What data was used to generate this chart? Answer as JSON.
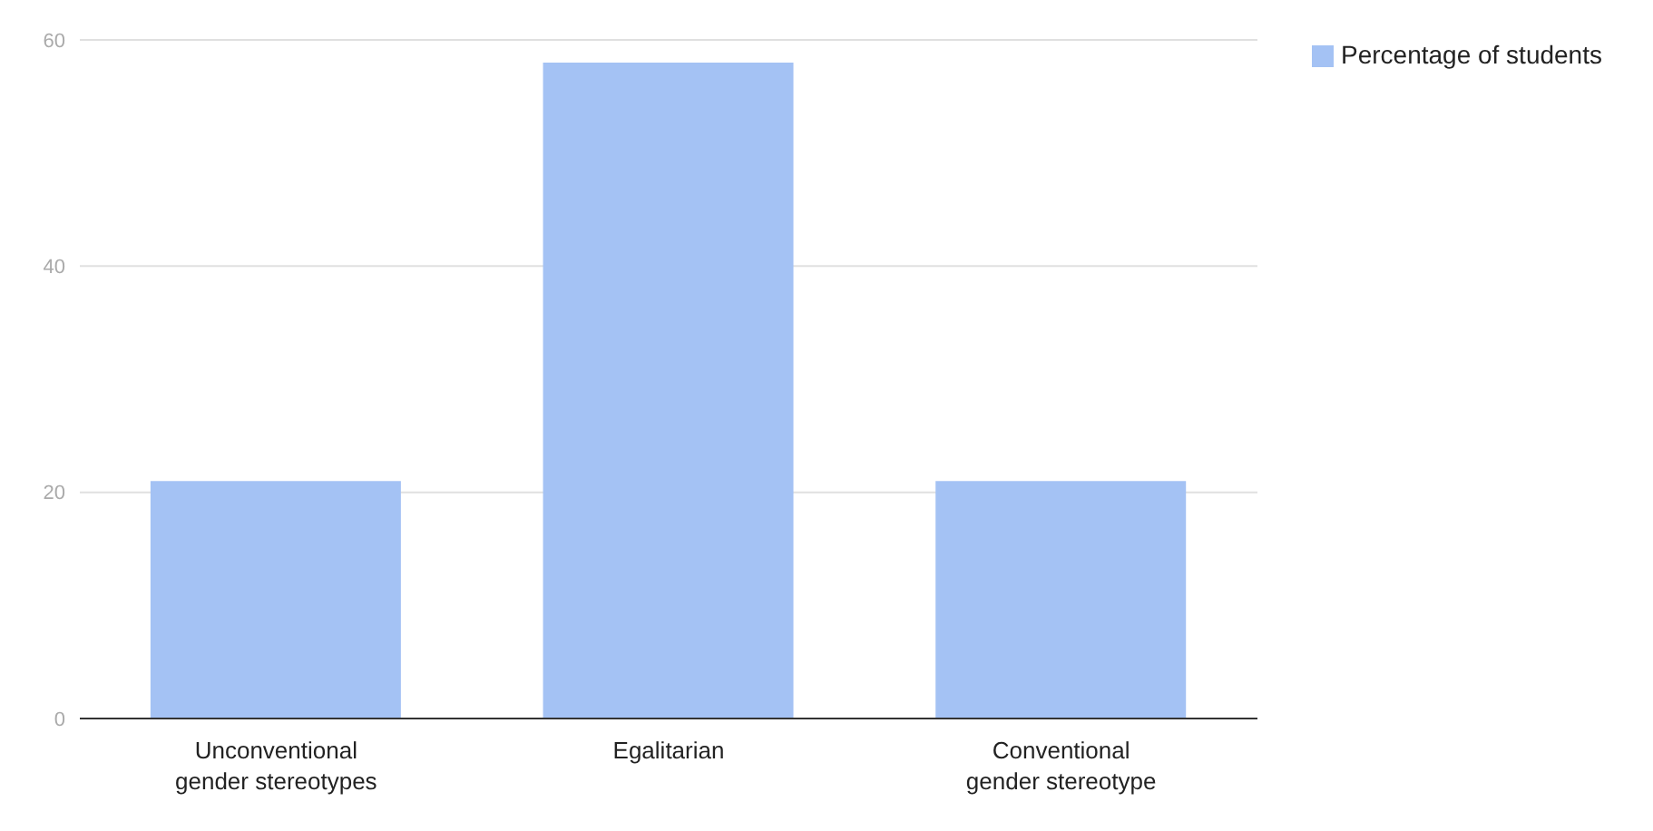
{
  "chart_data": {
    "type": "bar",
    "categories": [
      "Unconventional gender stereotypes",
      "Egalitarian",
      "Conventional gender stereotype"
    ],
    "series": [
      {
        "name": "Percentage of students",
        "color": "#a4c2f4",
        "values": [
          21,
          58,
          21
        ]
      }
    ],
    "ylim": [
      0,
      60
    ],
    "yticks": [
      0,
      20,
      40,
      60
    ],
    "grid": "y",
    "legend": "top right"
  }
}
